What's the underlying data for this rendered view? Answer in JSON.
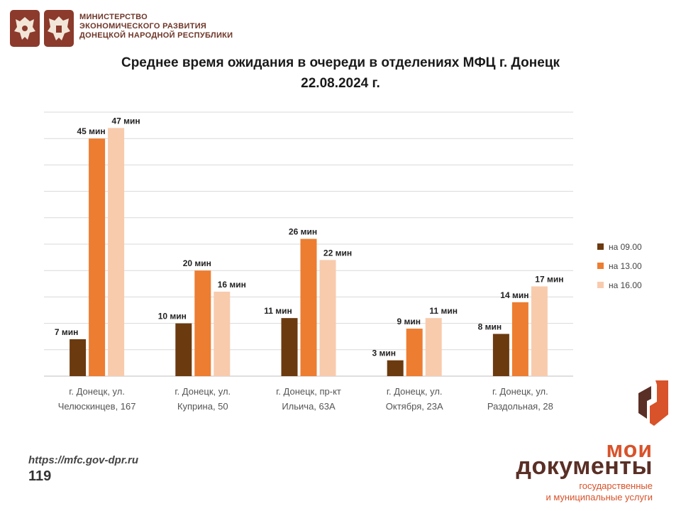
{
  "header": {
    "ministry_lines": [
      "МИНИСТЕРСТВО",
      "ЭКОНОМИЧЕСКОГО РАЗВИТИЯ",
      "ДОНЕЦКОЙ НАРОДНОЙ РЕСПУБЛИКИ"
    ],
    "emblems": [
      "russia-emblem-icon",
      "dpr-emblem-icon"
    ]
  },
  "chart_data": {
    "type": "bar",
    "title": "Среднее время ожидания в очереди в отделениях МФЦ г. Донецк",
    "subtitle": "22.08.2024 г.",
    "categories": [
      [
        "г. Донецк, ул.",
        "Челюскинцев, 167"
      ],
      [
        "г. Донецк, ул.",
        "Куприна, 50"
      ],
      [
        "г. Донецк, пр-кт",
        "Ильича, 63А"
      ],
      [
        "г. Донецк, ул.",
        "Октября, 23А"
      ],
      [
        "г. Донецк, ул.",
        "Раздольная, 28"
      ]
    ],
    "series": [
      {
        "name": "на 09.00",
        "color": "#6b3a0f",
        "values": [
          7,
          10,
          11,
          3,
          8
        ]
      },
      {
        "name": "на 13.00",
        "color": "#ed7d31",
        "values": [
          45,
          20,
          26,
          9,
          14
        ]
      },
      {
        "name": "на 16.00",
        "color": "#f8cbad",
        "values": [
          47,
          16,
          22,
          11,
          17
        ]
      }
    ],
    "value_unit": "мин",
    "ylim": [
      0,
      50
    ],
    "grid": true,
    "legend_position": "right"
  },
  "footer": {
    "site": "https://mfc.gov-dpr.ru",
    "page_number": "119"
  },
  "logo": {
    "line1": "мои",
    "line2": "документы",
    "line3": "государственные",
    "line4": "и муниципальные услуги"
  }
}
